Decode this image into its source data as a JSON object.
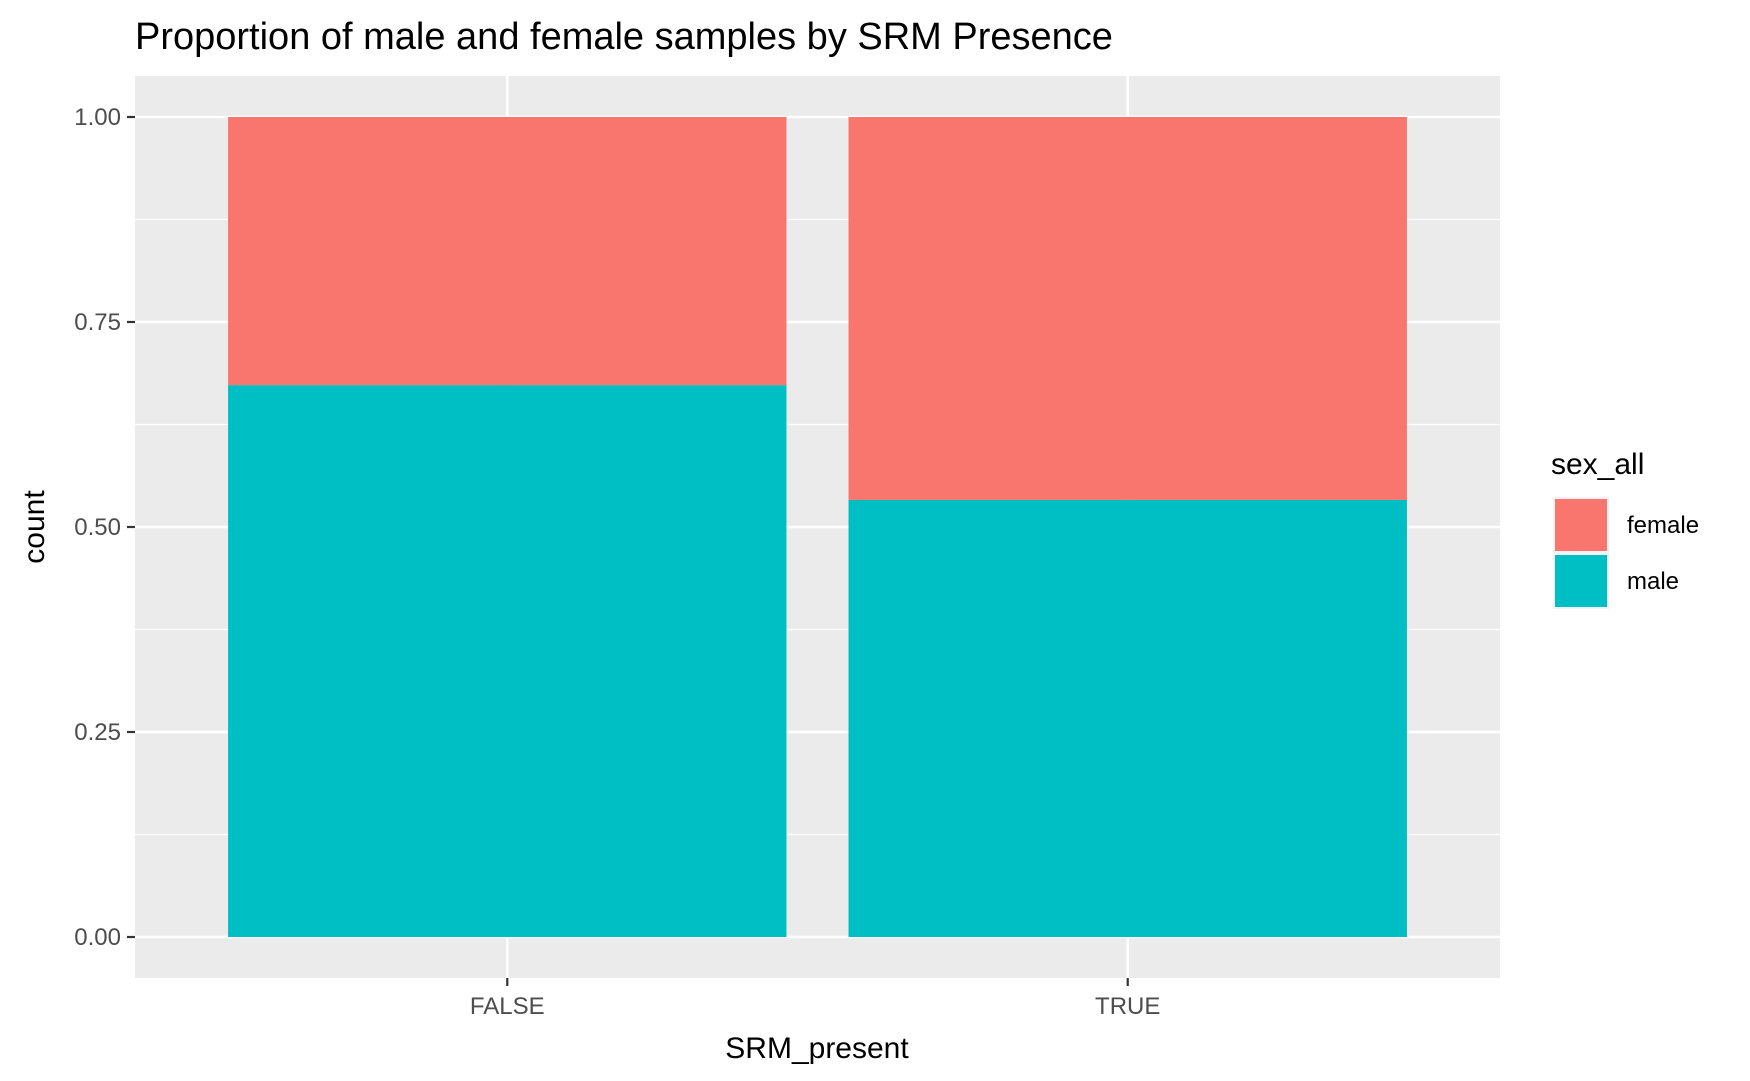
{
  "chart_data": {
    "type": "bar",
    "stacked": true,
    "position": "fill",
    "title": "Proportion of male and female samples by SRM Presence",
    "xlabel": "SRM_present",
    "ylabel": "count",
    "categories": [
      "FALSE",
      "TRUE"
    ],
    "series": [
      {
        "name": "female",
        "color": "#F8766D",
        "values": [
          0.327,
          0.467
        ]
      },
      {
        "name": "male",
        "color": "#00BFC4",
        "values": [
          0.673,
          0.533
        ]
      }
    ],
    "stack_order_top_to_bottom": [
      "female",
      "male"
    ],
    "ylim": [
      -0.05,
      1.05
    ],
    "yticks": [
      0.0,
      0.25,
      0.5,
      0.75,
      1.0
    ],
    "ytick_labels": [
      "0.00",
      "0.25",
      "0.50",
      "0.75",
      "1.00"
    ],
    "grid": true,
    "panel_background": "#EBEBEB",
    "grid_color": "#FFFFFF",
    "legend": {
      "title": "sex_all",
      "placement": "right",
      "entries": [
        "female",
        "male"
      ]
    }
  }
}
